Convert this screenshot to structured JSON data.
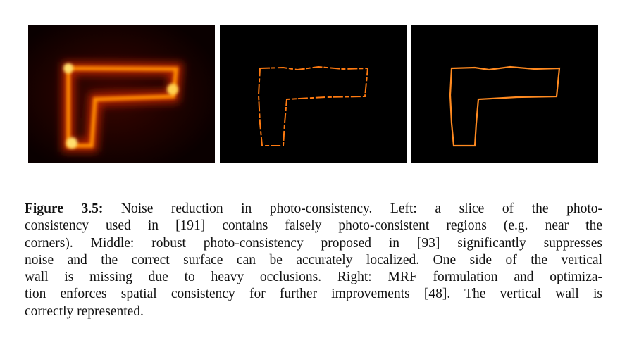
{
  "figure": {
    "label": "Figure 3.5:",
    "caption_lines": [
      "Noise reduction in photo-consistency. Left: a slice of the photo-",
      "consistency used in [191] contains falsely photo-consistent regions (e.g. near the",
      "corners). Middle: robust photo-consistency proposed in [93] significantly suppresses",
      "noise and the correct surface can be accurately localized. One side of the vertical",
      "wall is missing due to heavy occlusions. Right: MRF formulation and optimiza-",
      "tion enforces spatial consistency for further improvements [48]. The vertical wall is",
      "correctly represented."
    ]
  }
}
